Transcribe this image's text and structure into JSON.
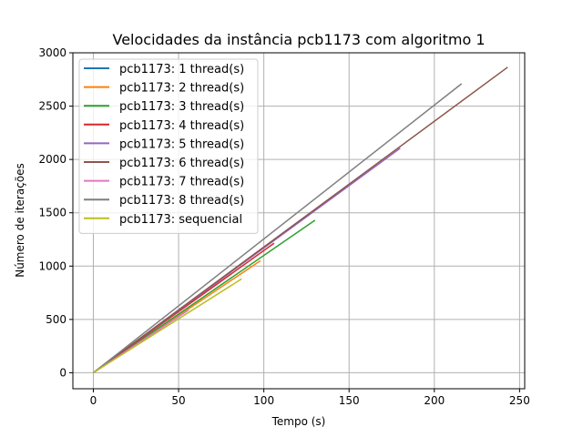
{
  "chart_data": {
    "type": "line",
    "title": "Velocidades da instância pcb1173 com algoritmo 1",
    "xlabel": "Tempo (s)",
    "ylabel": "Número de iterações",
    "xlim": [
      -12,
      253
    ],
    "ylim": [
      -150,
      3000
    ],
    "xticks": [
      0,
      50,
      100,
      150,
      200,
      250
    ],
    "yticks": [
      0,
      500,
      1000,
      1500,
      2000,
      2500,
      3000
    ],
    "grid": true,
    "legend_position": "top-left",
    "series": [
      {
        "name": "pcb1173: 1 thread(s)",
        "color": "#1f77b4",
        "points": [
          [
            0,
            0
          ],
          [
            55,
            580
          ]
        ]
      },
      {
        "name": "pcb1173: 2 thread(s)",
        "color": "#ff7f0e",
        "points": [
          [
            0,
            0
          ],
          [
            98,
            1050
          ]
        ]
      },
      {
        "name": "pcb1173: 3 thread(s)",
        "color": "#2ca02c",
        "points": [
          [
            0,
            0
          ],
          [
            130,
            1430
          ]
        ]
      },
      {
        "name": "pcb1173: 4 thread(s)",
        "color": "#d62728",
        "points": [
          [
            0,
            0
          ],
          [
            106,
            1215
          ]
        ]
      },
      {
        "name": "pcb1173: 5 thread(s)",
        "color": "#9467bd",
        "points": [
          [
            0,
            0
          ],
          [
            180,
            2105
          ]
        ]
      },
      {
        "name": "pcb1173: 6 thread(s)",
        "color": "#8c564b",
        "points": [
          [
            0,
            0
          ],
          [
            243,
            2865
          ]
        ]
      },
      {
        "name": "pcb1173: 7 thread(s)",
        "color": "#e377c2",
        "points": [
          [
            0,
            0
          ],
          [
            56,
            590
          ]
        ]
      },
      {
        "name": "pcb1173: 8 thread(s)",
        "color": "#7f7f7f",
        "points": [
          [
            0,
            0
          ],
          [
            216,
            2710
          ]
        ]
      },
      {
        "name": "pcb1173: sequencial",
        "color": "#bcbd22",
        "points": [
          [
            0,
            0
          ],
          [
            87,
            880
          ]
        ]
      }
    ]
  }
}
